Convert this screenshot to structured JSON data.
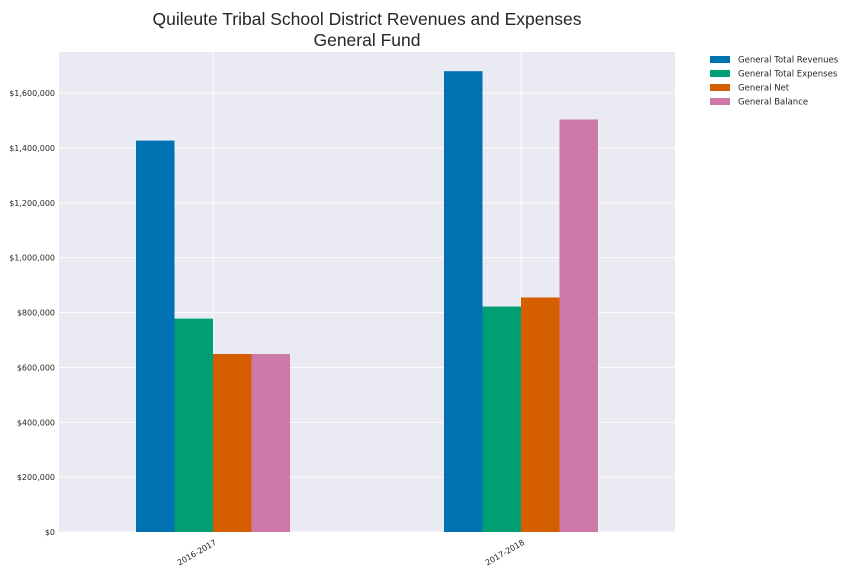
{
  "chart_data": {
    "type": "bar",
    "title": "Quileute Tribal School District Revenues and Expenses",
    "subtitle": "General Fund",
    "xlabel": "",
    "ylabel": "",
    "categories": [
      "2016-2017",
      "2017-2018"
    ],
    "series": [
      {
        "name": "General Total Revenues",
        "color": "#0072b2",
        "values": [
          1427000,
          1680000
        ]
      },
      {
        "name": "General Total Expenses",
        "color": "#009e73",
        "values": [
          778000,
          822000
        ]
      },
      {
        "name": "General Net",
        "color": "#d55e00",
        "values": [
          649000,
          855000
        ]
      },
      {
        "name": "General Balance",
        "color": "#cc79a7",
        "values": [
          649000,
          1504000
        ]
      }
    ],
    "ylim": [
      0,
      1750000
    ],
    "yticks": [
      0,
      200000,
      400000,
      600000,
      800000,
      1000000,
      1200000,
      1400000,
      1600000
    ],
    "ytick_labels": [
      "$0",
      "$200,000",
      "$400,000",
      "$600,000",
      "$800,000",
      "$1,000,000",
      "$1,200,000",
      "$1,400,000",
      "$1,600,000"
    ],
    "grid": true,
    "legend_position": "outside-top-right",
    "plot_background": "#eaeaf2",
    "grid_color": "#ffffff"
  }
}
